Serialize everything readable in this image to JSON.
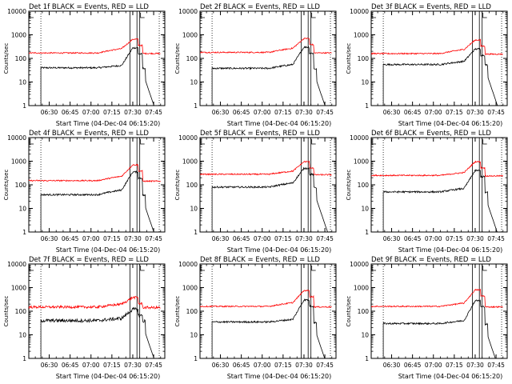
{
  "chart_data": [
    {
      "type": "line",
      "title": "Det 1f BLACK = Events, RED = LLD",
      "xlabel": "Start Time (04-Dec-04 06:15:20)",
      "ylabel": "Counts/sec",
      "yscale": "log",
      "ylim": [
        1,
        10000
      ],
      "x_ticks": [
        "06:30",
        "06:45",
        "07:00",
        "07:15",
        "07:30",
        "07:45"
      ],
      "y_ticks": [
        "1",
        "10",
        "100",
        "1000",
        "10000"
      ],
      "series": [
        {
          "color": "#000000",
          "start": "06:24",
          "pre": 40,
          "plateau": 50,
          "peak": 280
        },
        {
          "color": "#ff0000",
          "start": "06:15",
          "pre": 170,
          "plateau": 260,
          "peak": 650
        }
      ]
    },
    {
      "type": "line",
      "title": "Det 2f BLACK = Events, RED = LLD",
      "xlabel": "Start Time (04-Dec-04 06:15:20)",
      "ylabel": "Counts/sec",
      "yscale": "log",
      "ylim": [
        1,
        10000
      ],
      "x_ticks": [
        "06:30",
        "06:45",
        "07:00",
        "07:15",
        "07:30",
        "07:45"
      ],
      "y_ticks": [
        "1",
        "10",
        "100",
        "1000",
        "10000"
      ],
      "series": [
        {
          "color": "#000000",
          "start": "06:24",
          "pre": 38,
          "plateau": 55,
          "peak": 300
        },
        {
          "color": "#ff0000",
          "start": "06:15",
          "pre": 180,
          "plateau": 270,
          "peak": 700
        }
      ]
    },
    {
      "type": "line",
      "title": "Det 3f BLACK = Events, RED = LLD",
      "xlabel": "Start Time (04-Dec-04 06:15:20)",
      "ylabel": "Counts/sec",
      "yscale": "log",
      "ylim": [
        1,
        10000
      ],
      "x_ticks": [
        "06:30",
        "06:45",
        "07:00",
        "07:15",
        "07:30",
        "07:45"
      ],
      "y_ticks": [
        "1",
        "10",
        "100",
        "1000",
        "10000"
      ],
      "series": [
        {
          "color": "#000000",
          "start": "06:24",
          "pre": 55,
          "plateau": 75,
          "peak": 250
        },
        {
          "color": "#ff0000",
          "start": "06:15",
          "pre": 160,
          "plateau": 240,
          "peak": 600
        }
      ]
    },
    {
      "type": "line",
      "title": "Det 4f BLACK = Events, RED = LLD",
      "xlabel": "Start Time (04-Dec-04 06:15:20)",
      "ylabel": "Counts/sec",
      "yscale": "log",
      "ylim": [
        1,
        10000
      ],
      "x_ticks": [
        "06:30",
        "06:45",
        "07:00",
        "07:15",
        "07:30",
        "07:45"
      ],
      "y_ticks": [
        "1",
        "10",
        "100",
        "1000",
        "10000"
      ],
      "series": [
        {
          "color": "#000000",
          "start": "06:24",
          "pre": 38,
          "plateau": 60,
          "peak": 350
        },
        {
          "color": "#ff0000",
          "start": "06:15",
          "pre": 150,
          "plateau": 230,
          "peak": 700
        }
      ]
    },
    {
      "type": "line",
      "title": "Det 5f BLACK = Events, RED = LLD",
      "xlabel": "Start Time (04-Dec-04 06:15:20)",
      "ylabel": "Counts/sec",
      "yscale": "log",
      "ylim": [
        1,
        10000
      ],
      "x_ticks": [
        "06:30",
        "06:45",
        "07:00",
        "07:15",
        "07:30",
        "07:45"
      ],
      "y_ticks": [
        "1",
        "10",
        "100",
        "1000",
        "10000"
      ],
      "series": [
        {
          "color": "#000000",
          "start": "06:24",
          "pre": 80,
          "plateau": 120,
          "peak": 500
        },
        {
          "color": "#ff0000",
          "start": "06:15",
          "pre": 280,
          "plateau": 380,
          "peak": 950
        }
      ]
    },
    {
      "type": "line",
      "title": "Det 6f BLACK = Events, RED = LLD",
      "xlabel": "Start Time (04-Dec-04 06:15:20)",
      "ylabel": "Counts/sec",
      "yscale": "log",
      "ylim": [
        1,
        10000
      ],
      "x_ticks": [
        "06:30",
        "06:45",
        "07:00",
        "07:15",
        "07:30",
        "07:45"
      ],
      "y_ticks": [
        "1",
        "10",
        "100",
        "1000",
        "10000"
      ],
      "series": [
        {
          "color": "#000000",
          "start": "06:24",
          "pre": 50,
          "plateau": 70,
          "peak": 400
        },
        {
          "color": "#ff0000",
          "start": "06:15",
          "pre": 250,
          "plateau": 330,
          "peak": 950
        }
      ]
    },
    {
      "type": "line",
      "title": "Det 7f BLACK = Events, RED = LLD",
      "xlabel": "Start Time (04-Dec-04 06:15:20)",
      "ylabel": "Counts/sec",
      "yscale": "log",
      "ylim": [
        1,
        10000
      ],
      "x_ticks": [
        "06:30",
        "06:45",
        "07:00",
        "07:15",
        "07:30",
        "07:45"
      ],
      "y_ticks": [
        "1",
        "10",
        "100",
        "1000",
        "10000"
      ],
      "series": [
        {
          "color": "#000000",
          "start": "06:24",
          "pre": 40,
          "plateau": 50,
          "peak": 120
        },
        {
          "color": "#ff0000",
          "start": "06:15",
          "pre": 150,
          "plateau": 200,
          "peak": 380
        }
      ]
    },
    {
      "type": "line",
      "title": "Det 8f BLACK = Events, RED = LLD",
      "xlabel": "Start Time (04-Dec-04 06:15:20)",
      "ylabel": "Counts/sec",
      "yscale": "log",
      "ylim": [
        1,
        10000
      ],
      "x_ticks": [
        "06:30",
        "06:45",
        "07:00",
        "07:15",
        "07:30",
        "07:45"
      ],
      "y_ticks": [
        "1",
        "10",
        "100",
        "1000",
        "10000"
      ],
      "series": [
        {
          "color": "#000000",
          "start": "06:24",
          "pre": 35,
          "plateau": 45,
          "peak": 300
        },
        {
          "color": "#ff0000",
          "start": "06:15",
          "pre": 160,
          "plateau": 230,
          "peak": 750
        }
      ]
    },
    {
      "type": "line",
      "title": "Det 9f BLACK = Events, RED = LLD",
      "xlabel": "Start Time (04-Dec-04 06:15:20)",
      "ylabel": "Counts/sec",
      "yscale": "log",
      "ylim": [
        1,
        10000
      ],
      "x_ticks": [
        "06:30",
        "06:45",
        "07:00",
        "07:15",
        "07:30",
        "07:45"
      ],
      "y_ticks": [
        "1",
        "10",
        "100",
        "1000",
        "10000"
      ],
      "series": [
        {
          "color": "#000000",
          "start": "06:24",
          "pre": 30,
          "plateau": 40,
          "peak": 280
        },
        {
          "color": "#ff0000",
          "start": "06:15",
          "pre": 160,
          "plateau": 220,
          "peak": 800
        }
      ]
    }
  ]
}
